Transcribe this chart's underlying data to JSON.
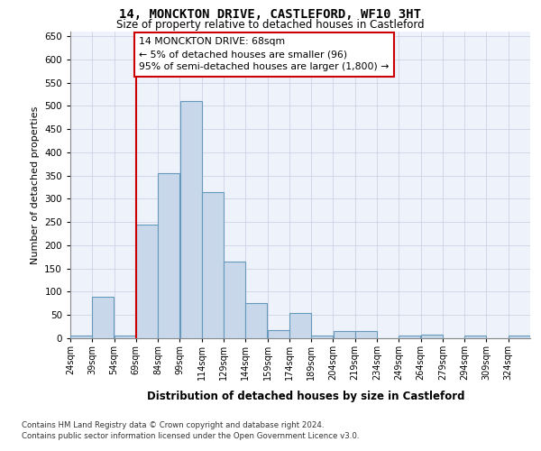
{
  "title": "14, MONCKTON DRIVE, CASTLEFORD, WF10 3HT",
  "subtitle": "Size of property relative to detached houses in Castleford",
  "xlabel": "Distribution of detached houses by size in Castleford",
  "ylabel": "Number of detached properties",
  "annotation_line1": "14 MONCKTON DRIVE: 68sqm",
  "annotation_line2": "← 5% of detached houses are smaller (96)",
  "annotation_line3": "95% of semi-detached houses are larger (1,800) →",
  "bin_labels": [
    "24sqm",
    "39sqm",
    "54sqm",
    "69sqm",
    "84sqm",
    "99sqm",
    "114sqm",
    "129sqm",
    "144sqm",
    "159sqm",
    "174sqm",
    "189sqm",
    "204sqm",
    "219sqm",
    "234sqm",
    "249sqm",
    "264sqm",
    "279sqm",
    "294sqm",
    "309sqm",
    "324sqm"
  ],
  "bin_starts": [
    24,
    39,
    54,
    69,
    84,
    99,
    114,
    129,
    144,
    159,
    174,
    189,
    204,
    219,
    234,
    249,
    264,
    279,
    294,
    309,
    324
  ],
  "bin_width": 15,
  "bar_values": [
    5,
    90,
    5,
    245,
    355,
    510,
    315,
    165,
    75,
    18,
    55,
    5,
    15,
    15,
    0,
    5,
    8,
    0,
    5,
    0,
    5
  ],
  "bar_color": "#c8d8ea",
  "bar_edge_color": "#6699bb",
  "red_line_x": 69,
  "red_box_color": "#cc0000",
  "background_color": "#eef2fa",
  "grid_color": "#c5cde0",
  "footer_line1": "Contains HM Land Registry data © Crown copyright and database right 2024.",
  "footer_line2": "Contains public sector information licensed under the Open Government Licence v3.0.",
  "ylim": [
    0,
    660
  ],
  "yticks": [
    0,
    50,
    100,
    150,
    200,
    250,
    300,
    350,
    400,
    450,
    500,
    550,
    600,
    650
  ]
}
